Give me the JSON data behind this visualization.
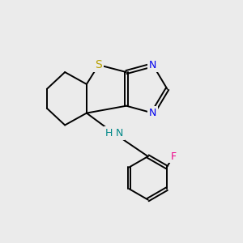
{
  "background_color": "#ebebeb",
  "atom_colors": {
    "S": "#b8a000",
    "N": "#0000ee",
    "F": "#ee0088",
    "NH": "#008888",
    "C": "#000000"
  },
  "bond_color": "#000000",
  "bond_width": 1.4,
  "figsize": [
    3.0,
    3.0
  ],
  "dpi": 100
}
